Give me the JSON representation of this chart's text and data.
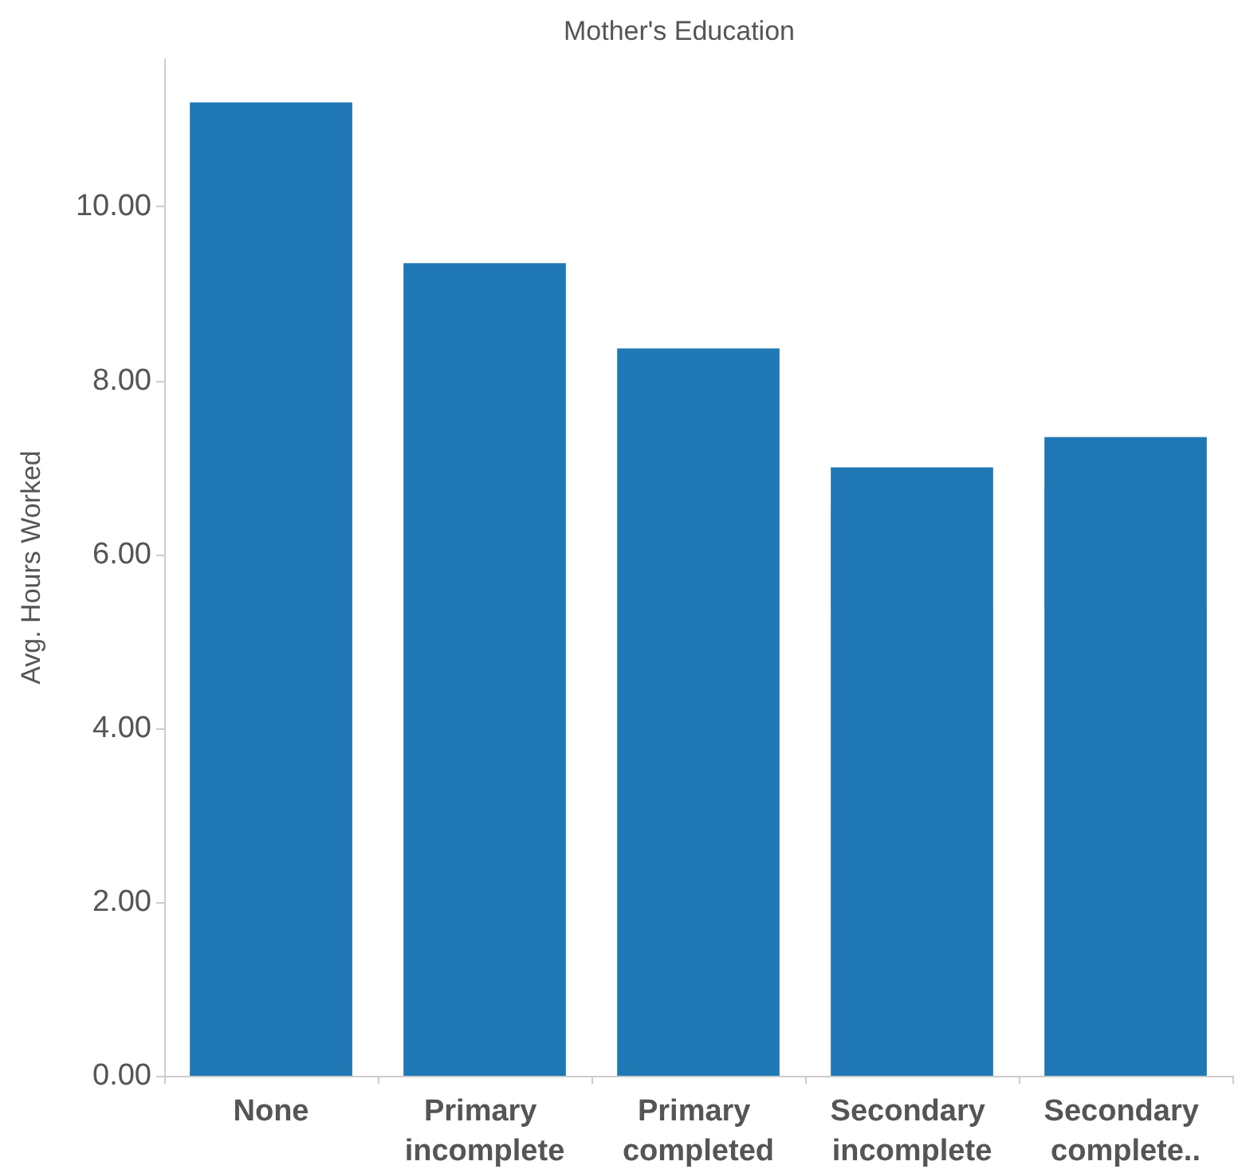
{
  "chart_data": {
    "type": "bar",
    "title": "Mother's Education",
    "ylabel": "Avg. Hours Worked",
    "categories": [
      "None",
      "Primary incomplete",
      "Primary completed",
      "Secondary incomplete",
      "Secondary complete.."
    ],
    "values": [
      11.2,
      9.35,
      8.37,
      7.0,
      7.35
    ],
    "color": "#1f77b4",
    "ylim": [
      0,
      11.7
    ],
    "yticks": [
      {
        "value": 0,
        "label": "0.00"
      },
      {
        "value": 2,
        "label": "2.00"
      },
      {
        "value": 4,
        "label": "4.00"
      },
      {
        "value": 6,
        "label": "6.00"
      },
      {
        "value": 8,
        "label": "8.00"
      },
      {
        "value": 10,
        "label": "10.00"
      }
    ],
    "grid": false
  }
}
